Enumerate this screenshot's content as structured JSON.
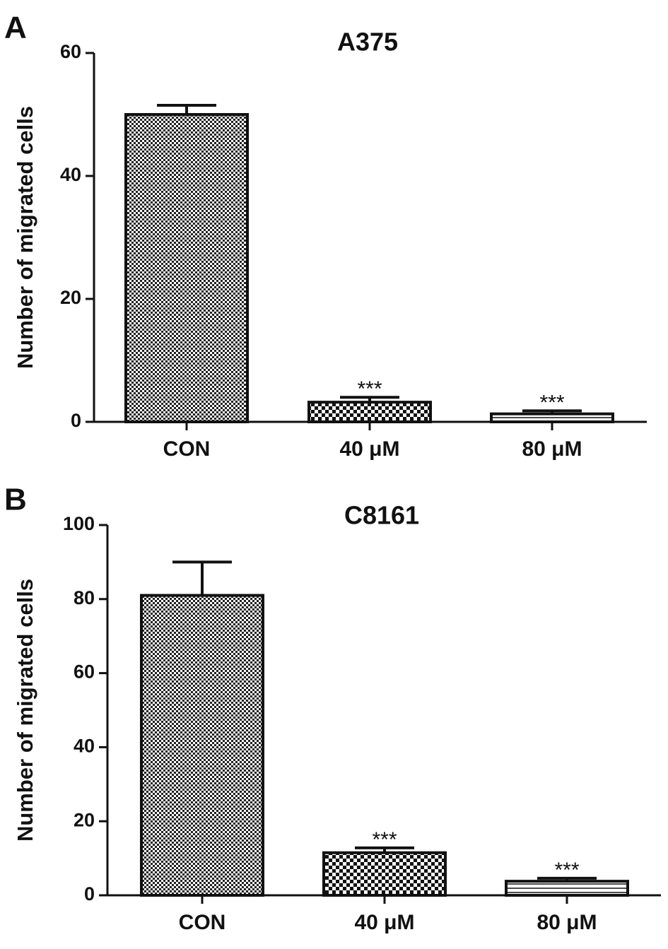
{
  "chart_data": [
    {
      "type": "bar",
      "panel_label": "A",
      "title": "A375",
      "y_label": "Number of migrated cells",
      "categories": [
        "CON",
        "40 μM",
        "80 μM"
      ],
      "values": [
        50,
        3.2,
        1.3
      ],
      "errors": [
        1.5,
        0.8,
        0.5
      ],
      "significance": [
        null,
        "***",
        "***"
      ],
      "patterns": [
        "fine-check",
        "coarse-check",
        "stripe"
      ],
      "ylim": [
        0,
        60
      ],
      "yticks": [
        0,
        20,
        40,
        60
      ]
    },
    {
      "type": "bar",
      "panel_label": "B",
      "title": "C8161",
      "y_label": "Number of migrated cells",
      "categories": [
        "CON",
        "40 μM",
        "80 μM"
      ],
      "values": [
        81,
        11.5,
        3.8
      ],
      "errors": [
        9,
        1.3,
        0.8
      ],
      "significance": [
        null,
        "***",
        "***"
      ],
      "patterns": [
        "fine-check",
        "coarse-check",
        "stripe"
      ],
      "ylim": [
        0,
        100
      ],
      "yticks": [
        0,
        20,
        40,
        60,
        80,
        100
      ]
    }
  ]
}
